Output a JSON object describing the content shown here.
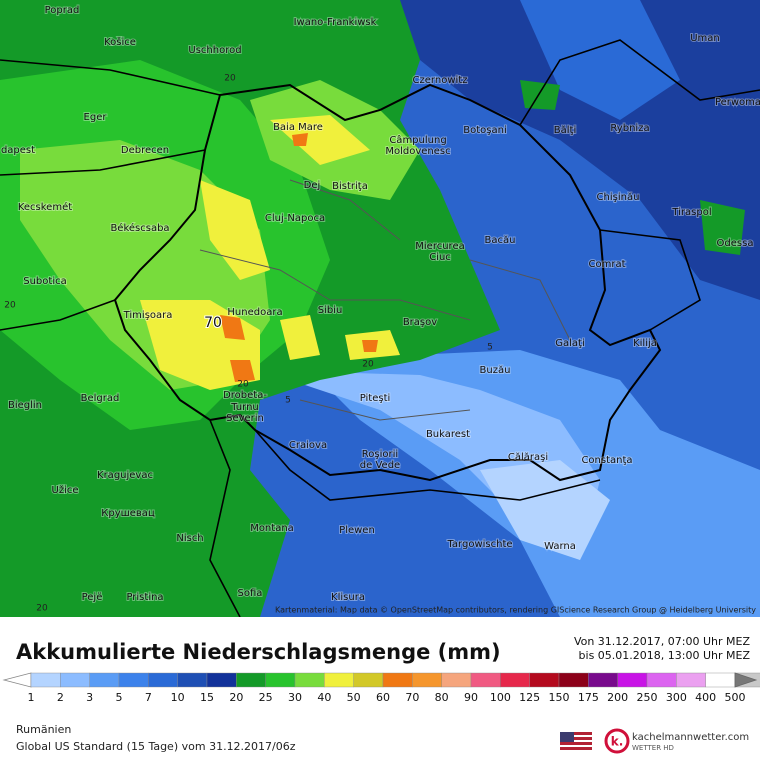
{
  "map": {
    "cities": [
      "Poprad",
      "Košice",
      "Uschhorod",
      "Iwano-Frankiwsk",
      "Uman",
      "Czernowitz",
      "Perwoma",
      "Eger",
      "Baia Mare",
      "Câmpulung",
      "Moldovenesc",
      "Botoşani",
      "Bălţi",
      "Rybniza",
      "dapest",
      "Debrecen",
      "Dej",
      "Bistriţa",
      "Chişinău",
      "Kecskemét",
      "Cluj-Napoca",
      "Tiraspol",
      "Békéscsaba",
      "Bacău",
      "Miercurea",
      "Ciuc",
      "Odessa",
      "Comrat",
      "Subotica",
      "Timişoara",
      "Hunedoara",
      "Sibiu",
      "Braşov",
      "Galaţi",
      "Kilija",
      "Buzău",
      "Bieglin",
      "Belgrad",
      "Drobeta-",
      "Turnu",
      "Severin",
      "Piteşti",
      "Craiova",
      "Bukarest",
      "Roşiorii",
      "de Vede",
      "Călăraşi",
      "Constanţa",
      "Kragujevac",
      "Užice",
      "Крушевац",
      "Montana",
      "Plewen",
      "Nisch",
      "Targowischte",
      "Warna",
      "Sofia",
      "Pejë",
      "Pristina",
      "Klisura"
    ],
    "contour_labels": [
      "20",
      "70",
      "20",
      "5",
      "20",
      "5",
      "20",
      "20"
    ],
    "attribution": "Kartenmaterial: Map data © OpenStreetMap contributors, rendering GIScience Research Group @ Heidelberg University"
  },
  "legend": {
    "title": "Akkumulierte Niederschlagsmenge (mm)",
    "period_from": "Von 31.12.2017, 07:00 Uhr MEZ",
    "period_to": "bis 05.01.2018, 13:00 Uhr MEZ",
    "levels": [
      1,
      2,
      3,
      5,
      7,
      10,
      15,
      20,
      25,
      30,
      40,
      50,
      60,
      70,
      80,
      90,
      100,
      125,
      150,
      175,
      200,
      250,
      300,
      400,
      500
    ],
    "colors": [
      "#b4d4ff",
      "#8cbcff",
      "#5a9cf5",
      "#3c82eb",
      "#2a6ad6",
      "#1e4fb4",
      "#12329a",
      "#149a28",
      "#28c32d",
      "#78dc3c",
      "#f0f03c",
      "#d2c828",
      "#f07814",
      "#f5962d",
      "#f5a57d",
      "#f05a82",
      "#e6284b",
      "#b40a1e",
      "#8c0019",
      "#780a8c",
      "#c814e6",
      "#dc64f0",
      "#eba0f0",
      "#ffffff",
      "#c8c8c8"
    ]
  },
  "footer": {
    "region": "Rumänien",
    "model": "Global US Standard (15 Tage) vom 31.12.2017/06z",
    "brand": "kachelmannwetter.com",
    "brand_sub": "WETTER HD"
  }
}
